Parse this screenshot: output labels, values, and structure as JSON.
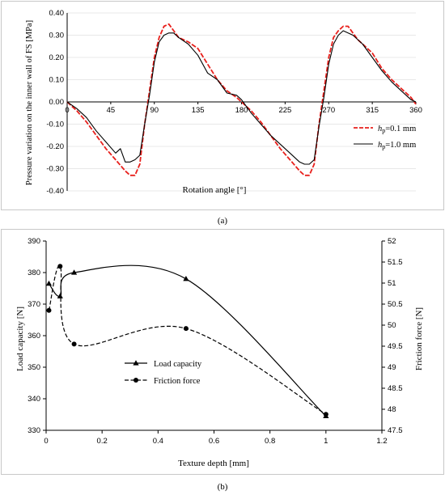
{
  "colors": {
    "red": "#e8201c",
    "black": "#000000"
  },
  "chart_data": [
    {
      "type": "line",
      "caption": "(a)",
      "xlabel": "Rotation angle [°]",
      "ylabel": "Pressure variation on the inner wall of FS [MPa]",
      "xlim": [
        0,
        360
      ],
      "ylim": [
        -0.4,
        0.4
      ],
      "xticks": [
        0,
        45,
        90,
        135,
        180,
        225,
        270,
        315,
        360
      ],
      "yticks": [
        -0.4,
        -0.3,
        -0.2,
        -0.1,
        0,
        0.1,
        0.2,
        0.3,
        0.4
      ],
      "xtick_labels": [
        "0",
        "45",
        "90",
        "135",
        "180",
        "225",
        "270",
        "315",
        "360"
      ],
      "ytick_labels": [
        "-0.40",
        "-0.30",
        "-0.20",
        "-0.10",
        "0.00",
        "0.10",
        "0.20",
        "0.30",
        "0.40"
      ],
      "legend_position": "right",
      "series": [
        {
          "name_italic": "h",
          "name_sub": "p",
          "name_rest": "=0.1 mm",
          "color": "#e8201c",
          "style": "dashed",
          "x": [
            0,
            10,
            20,
            30,
            40,
            50,
            60,
            65,
            70,
            75,
            80,
            85,
            90,
            95,
            100,
            105,
            110,
            115,
            125,
            135,
            145,
            155,
            165,
            175,
            180,
            190,
            200,
            210,
            220,
            230,
            240,
            245,
            250,
            255,
            260,
            265,
            270,
            275,
            280,
            285,
            290,
            295,
            300,
            305,
            315,
            325,
            335,
            345,
            355,
            360
          ],
          "y": [
            0.0,
            -0.04,
            -0.09,
            -0.15,
            -0.21,
            -0.26,
            -0.31,
            -0.33,
            -0.33,
            -0.28,
            -0.1,
            0.05,
            0.2,
            0.29,
            0.34,
            0.35,
            0.32,
            0.29,
            0.27,
            0.24,
            0.17,
            0.1,
            0.05,
            0.02,
            0.0,
            -0.04,
            -0.09,
            -0.15,
            -0.21,
            -0.26,
            -0.31,
            -0.33,
            -0.33,
            -0.28,
            -0.1,
            0.05,
            0.2,
            0.29,
            0.32,
            0.34,
            0.34,
            0.31,
            0.28,
            0.26,
            0.22,
            0.15,
            0.1,
            0.06,
            0.02,
            -0.01
          ]
        },
        {
          "name_italic": "h",
          "name_sub": "p",
          "name_rest": "=1.0 mm",
          "color": "#000000",
          "style": "solid",
          "x": [
            0,
            10,
            20,
            30,
            40,
            50,
            55,
            60,
            65,
            70,
            75,
            80,
            85,
            90,
            95,
            100,
            105,
            110,
            115,
            125,
            135,
            145,
            155,
            165,
            175,
            180,
            190,
            200,
            210,
            220,
            230,
            240,
            245,
            250,
            255,
            260,
            265,
            270,
            275,
            280,
            285,
            290,
            295,
            300,
            305,
            315,
            325,
            335,
            345,
            355,
            360
          ],
          "y": [
            0.0,
            -0.03,
            -0.07,
            -0.13,
            -0.18,
            -0.23,
            -0.21,
            -0.27,
            -0.27,
            -0.26,
            -0.24,
            -0.1,
            0.03,
            0.18,
            0.27,
            0.3,
            0.31,
            0.31,
            0.29,
            0.26,
            0.21,
            0.13,
            0.1,
            0.04,
            0.03,
            0.01,
            -0.05,
            -0.1,
            -0.15,
            -0.19,
            -0.23,
            -0.27,
            -0.28,
            -0.28,
            -0.26,
            -0.11,
            0.02,
            0.17,
            0.26,
            0.3,
            0.32,
            0.31,
            0.3,
            0.28,
            0.26,
            0.2,
            0.14,
            0.09,
            0.05,
            0.01,
            0.0
          ]
        }
      ]
    },
    {
      "type": "line",
      "caption": "(b)",
      "xlabel": "Texture depth  [mm]",
      "ylabel": "Load capacity [N]",
      "ylabel_right": "Friction force [N]",
      "xlim": [
        0,
        1.2
      ],
      "ylim": [
        330,
        390
      ],
      "ylim_right": [
        47.5,
        52
      ],
      "xticks": [
        0,
        0.2,
        0.4,
        0.6,
        0.8,
        1,
        1.2
      ],
      "xtick_labels": [
        "0",
        "0.2",
        "0.4",
        "0.6",
        "0.8",
        "1",
        "1.2"
      ],
      "yticks": [
        330,
        340,
        350,
        360,
        370,
        380,
        390
      ],
      "ytick_labels": [
        "330",
        "340",
        "350",
        "360",
        "370",
        "380",
        "390"
      ],
      "yticks_right": [
        47.5,
        48,
        48.5,
        49,
        49.5,
        50,
        50.5,
        51,
        51.5,
        52
      ],
      "ytick_labels_right": [
        "47.5",
        "48",
        "48.5",
        "49",
        "49.5",
        "50",
        "50.5",
        "51",
        "51.5",
        "52"
      ],
      "legend_position": "center-left",
      "series": [
        {
          "name": "Load capacity",
          "axis": "left",
          "marker": "triangle",
          "style": "solid",
          "x": [
            0.01,
            0.05,
            0.1,
            0.5,
            1.0
          ],
          "y": [
            376.5,
            372.5,
            380,
            378,
            334.5
          ]
        },
        {
          "name": "Friction force",
          "axis": "right",
          "marker": "circle",
          "style": "dashed",
          "x": [
            0.01,
            0.05,
            0.1,
            0.5,
            1.0
          ],
          "y": [
            50.35,
            51.4,
            49.55,
            49.92,
            47.88
          ]
        }
      ]
    }
  ]
}
